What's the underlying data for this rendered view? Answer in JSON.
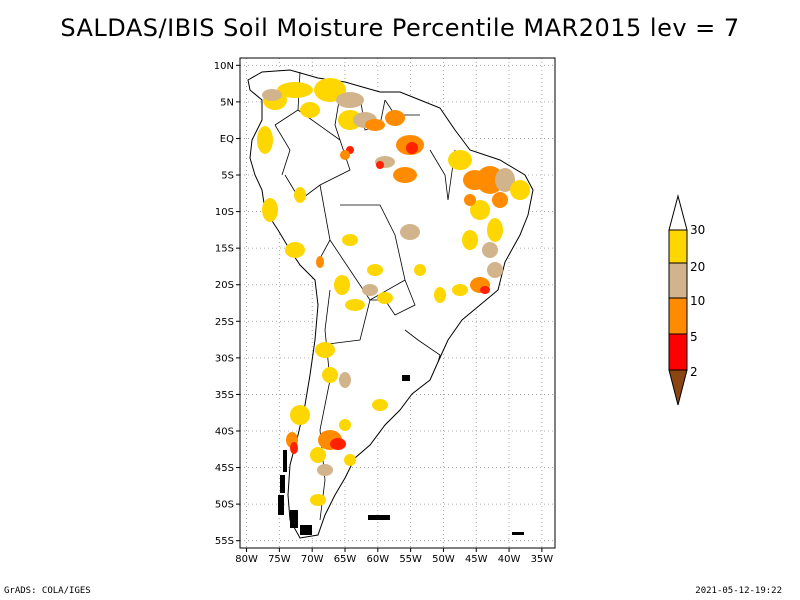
{
  "title": "SALDAS/IBIS Soil Moisture Percentile MAR2015 lev = 7",
  "footer": {
    "left": "GrADS: COLA/IGES",
    "right": "2021-05-12-19:22"
  },
  "map": {
    "lon_range": [
      -81,
      -33
    ],
    "lat_range": [
      -56,
      11
    ],
    "lat_ticks": [
      {
        "lat": 10,
        "label": "10N"
      },
      {
        "lat": 5,
        "label": "5N"
      },
      {
        "lat": 0,
        "label": "EQ"
      },
      {
        "lat": -5,
        "label": "5S"
      },
      {
        "lat": -10,
        "label": "10S"
      },
      {
        "lat": -15,
        "label": "15S"
      },
      {
        "lat": -20,
        "label": "20S"
      },
      {
        "lat": -25,
        "label": "25S"
      },
      {
        "lat": -30,
        "label": "30S"
      },
      {
        "lat": -35,
        "label": "35S"
      },
      {
        "lat": -40,
        "label": "40S"
      },
      {
        "lat": -45,
        "label": "45S"
      },
      {
        "lat": -50,
        "label": "50S"
      },
      {
        "lat": -55,
        "label": "55S"
      }
    ],
    "lon_ticks": [
      {
        "lon": -80,
        "label": "80W"
      },
      {
        "lon": -75,
        "label": "75W"
      },
      {
        "lon": -70,
        "label": "70W"
      },
      {
        "lon": -65,
        "label": "65W"
      },
      {
        "lon": -60,
        "label": "60W"
      },
      {
        "lon": -55,
        "label": "55W"
      },
      {
        "lon": -50,
        "label": "50W"
      },
      {
        "lon": -45,
        "label": "45W"
      },
      {
        "lon": -40,
        "label": "40W"
      },
      {
        "lon": -35,
        "label": "35W"
      }
    ]
  },
  "colorbar": {
    "labels": [
      "2",
      "5",
      "10",
      "20",
      "30"
    ],
    "colors": [
      "#8b4513",
      "#ff0000",
      "#ff8c00",
      "#d2b48c",
      "#ffd700",
      "#ffffff"
    ]
  },
  "colors": {
    "gold": "#ffd700",
    "tan": "#d2b48c",
    "orange": "#ff8c00",
    "red": "#ff2200",
    "brown": "#8b4513"
  }
}
